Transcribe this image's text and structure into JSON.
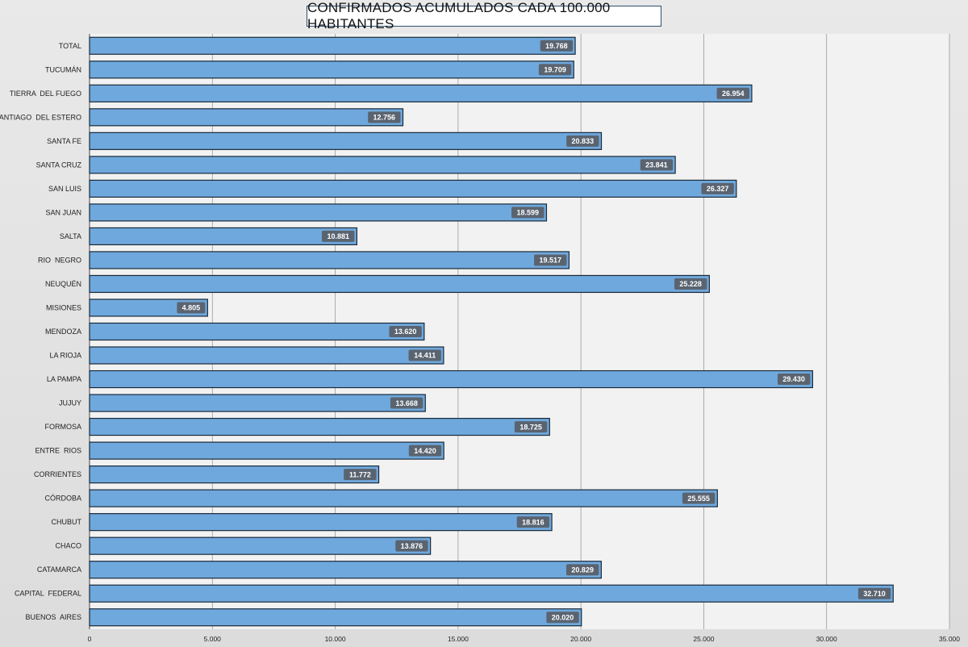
{
  "chart_data": {
    "type": "bar",
    "orientation": "horizontal",
    "title": "CONFIRMADOS ACUMULADOS CADA 100.000 HABITANTES",
    "categories": [
      "TOTAL",
      "TUCUMÁN",
      "TIERRA  DEL FUEGO",
      "SANTIAGO  DEL ESTERO",
      "SANTA FE",
      "SANTA CRUZ",
      "SAN LUIS",
      "SAN JUAN",
      "SALTA",
      "RIO  NEGRO",
      "NEUQUÉN",
      "MISIONES",
      "MENDOZA",
      "LA RIOJA",
      "LA PAMPA",
      "JUJUY",
      "FORMOSA",
      "ENTRE  RIOS",
      "CORRIENTES",
      "CÓRDOBA",
      "CHUBUT",
      "CHACO",
      "CATAMARCA",
      "CAPITAL  FEDERAL",
      "BUENOS  AIRES"
    ],
    "values": [
      19768,
      19709,
      26954,
      12756,
      20833,
      23841,
      26327,
      18599,
      10881,
      19517,
      25228,
      4805,
      13620,
      14411,
      29430,
      13668,
      18725,
      14420,
      11772,
      25555,
      18816,
      13876,
      20829,
      32710,
      20020
    ],
    "value_labels": [
      "19.768",
      "19.709",
      "26.954",
      "12.756",
      "20.833",
      "23.841",
      "26.327",
      "18.599",
      "10.881",
      "19.517",
      "25.228",
      "4.805",
      "13.620",
      "14.411",
      "29.430",
      "13.668",
      "18.725",
      "14.420",
      "11.772",
      "25.555",
      "18.816",
      "13.876",
      "20.829",
      "32.710",
      "20.020"
    ],
    "xlim": [
      0,
      35000
    ],
    "x_ticks": [
      0,
      5000,
      10000,
      15000,
      20000,
      25000,
      30000,
      35000
    ],
    "x_tick_labels": [
      "0",
      "5.000",
      "10.000",
      "15.000",
      "20.000",
      "25.000",
      "30.000",
      "35.000"
    ],
    "grid": "vertical",
    "colors": {
      "bar": "#6fa8dc",
      "bar_border": "#1a2a3a",
      "label_bg": "#5a6470",
      "plot_bg": "#f2f2f2",
      "grid": "#9a9a9a"
    }
  }
}
